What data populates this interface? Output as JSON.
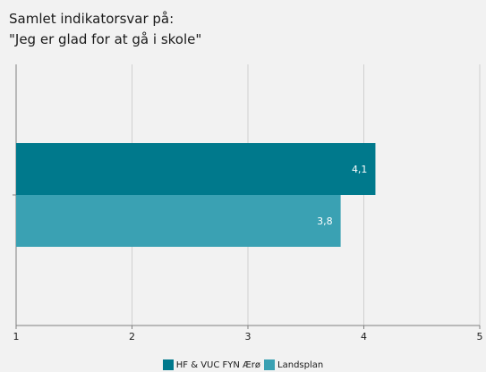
{
  "chart_data": {
    "type": "bar",
    "orientation": "horizontal",
    "title_lines": [
      "Samlet indikatorsvar på:",
      "\"Jeg er glad for at gå i skole\""
    ],
    "categories": [
      ""
    ],
    "series": [
      {
        "name": "HF & VUC FYN Ærø",
        "values": [
          4.1
        ],
        "labels": [
          "4,1"
        ],
        "color": "#00798c"
      },
      {
        "name": "Landsplan",
        "values": [
          3.8
        ],
        "labels": [
          "3,8"
        ],
        "color": "#3aa1b3"
      }
    ],
    "x_ticks": [
      1,
      2,
      3,
      4,
      5
    ],
    "x_tick_labels": [
      "1",
      "2",
      "3",
      "4",
      "5"
    ],
    "xlim": [
      1,
      5
    ],
    "grid": "vertical",
    "legend_position": "bottom"
  },
  "colors": {
    "background": "#f2f2f2",
    "gridline": "#d0d0d0",
    "axis": "#808080",
    "bar_label": "#ffffff"
  }
}
